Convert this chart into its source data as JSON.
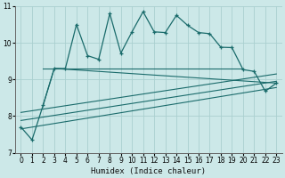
{
  "xlabel": "Humidex (Indice chaleur)",
  "xlim": [
    -0.5,
    23.5
  ],
  "ylim": [
    7,
    11
  ],
  "yticks": [
    7,
    8,
    9,
    10,
    11
  ],
  "xticks": [
    0,
    1,
    2,
    3,
    4,
    5,
    6,
    7,
    8,
    9,
    10,
    11,
    12,
    13,
    14,
    15,
    16,
    17,
    18,
    19,
    20,
    21,
    22,
    23
  ],
  "bg_color": "#cce8e8",
  "grid_color": "#aad0d0",
  "line_color": "#1a6b6b",
  "main_x": [
    0,
    1,
    2,
    3,
    4,
    5,
    6,
    7,
    8,
    9,
    10,
    11,
    12,
    13,
    14,
    15,
    16,
    17,
    18,
    19,
    20,
    21,
    22,
    23
  ],
  "main_y": [
    7.7,
    7.35,
    8.3,
    9.3,
    9.3,
    10.5,
    9.65,
    9.55,
    10.8,
    9.72,
    10.3,
    10.85,
    10.3,
    10.28,
    10.75,
    10.48,
    10.28,
    10.25,
    9.88,
    9.87,
    9.27,
    9.22,
    8.68,
    8.9
  ],
  "horiz_line_x": [
    2,
    20
  ],
  "horiz_line_y": [
    9.3,
    9.3
  ],
  "v_line_x": [
    2,
    3,
    23
  ],
  "v_line_y": [
    8.3,
    9.3,
    8.9
  ],
  "fan_lines": [
    {
      "x": [
        0,
        23
      ],
      "y": [
        8.1,
        9.15
      ]
    },
    {
      "x": [
        0,
        23
      ],
      "y": [
        7.88,
        8.95
      ]
    },
    {
      "x": [
        0,
        23
      ],
      "y": [
        7.65,
        8.78
      ]
    }
  ]
}
